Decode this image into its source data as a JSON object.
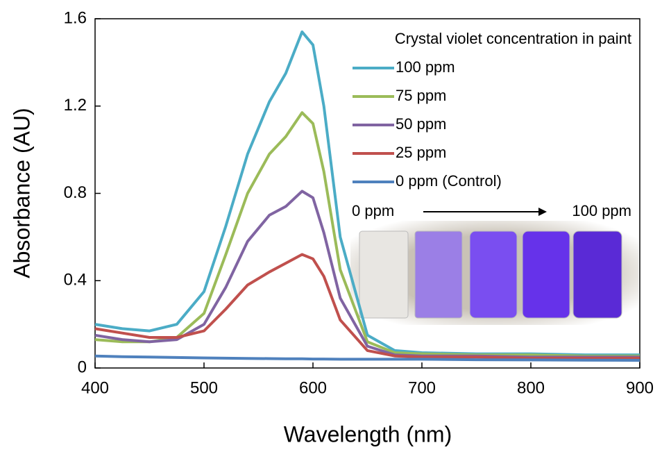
{
  "chart_data": {
    "type": "line",
    "x_label": "Wavelength (nm)",
    "y_label": "Absorbance (AU)",
    "x": [
      400,
      425,
      450,
      475,
      500,
      520,
      540,
      560,
      575,
      590,
      600,
      610,
      625,
      650,
      675,
      700,
      750,
      800,
      850,
      900
    ],
    "series": [
      {
        "name": "100 ppm",
        "color": "#4bacc6",
        "values": [
          0.2,
          0.18,
          0.17,
          0.2,
          0.35,
          0.65,
          0.98,
          1.22,
          1.35,
          1.54,
          1.48,
          1.2,
          0.6,
          0.15,
          0.08,
          0.07,
          0.065,
          0.065,
          0.06,
          0.06
        ]
      },
      {
        "name": "75 ppm",
        "color": "#9bbb59",
        "values": [
          0.13,
          0.12,
          0.12,
          0.14,
          0.25,
          0.52,
          0.8,
          0.98,
          1.06,
          1.17,
          1.12,
          0.9,
          0.45,
          0.12,
          0.07,
          0.065,
          0.06,
          0.06,
          0.055,
          0.055
        ]
      },
      {
        "name": "50 ppm",
        "color": "#8064a2",
        "values": [
          0.15,
          0.13,
          0.12,
          0.13,
          0.2,
          0.37,
          0.58,
          0.7,
          0.74,
          0.81,
          0.78,
          0.62,
          0.32,
          0.1,
          0.06,
          0.055,
          0.055,
          0.05,
          0.05,
          0.05
        ]
      },
      {
        "name": "25 ppm",
        "color": "#c0504d",
        "values": [
          0.18,
          0.16,
          0.14,
          0.14,
          0.17,
          0.27,
          0.38,
          0.44,
          0.48,
          0.52,
          0.5,
          0.42,
          0.22,
          0.08,
          0.055,
          0.05,
          0.05,
          0.045,
          0.045,
          0.045
        ]
      },
      {
        "name": "0 ppm (Control)",
        "color": "#4f81bd",
        "values": [
          0.055,
          0.052,
          0.05,
          0.048,
          0.046,
          0.045,
          0.044,
          0.043,
          0.042,
          0.042,
          0.041,
          0.041,
          0.04,
          0.04,
          0.04,
          0.04,
          0.038,
          0.037,
          0.036,
          0.035
        ]
      }
    ],
    "legend_title": "Crystal violet concentration in paint",
    "annotations": [
      "0 ppm",
      "100 ppm"
    ],
    "xlim": [
      400,
      900
    ],
    "xticks": [
      400,
      500,
      600,
      700,
      800,
      900
    ],
    "ylim": [
      0,
      1.6
    ],
    "yticks": [
      0,
      0.4,
      0.8,
      1.2,
      1.6
    ],
    "grid": false
  }
}
